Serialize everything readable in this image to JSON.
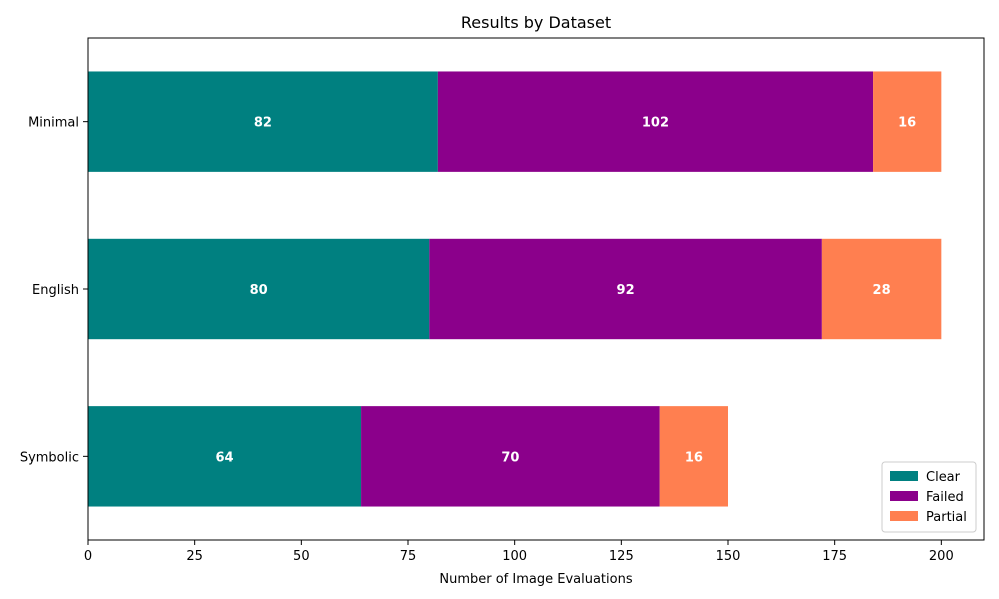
{
  "chart_data": {
    "type": "bar",
    "orientation": "horizontal",
    "stacked": true,
    "title": "Results by Dataset",
    "xlabel": "Number of Image Evaluations",
    "ylabel": "",
    "categories": [
      "Symbolic",
      "English",
      "Minimal"
    ],
    "series": [
      {
        "name": "Clear",
        "color": "#008080",
        "values": [
          64,
          80,
          82
        ]
      },
      {
        "name": "Failed",
        "color": "#8B008B",
        "values": [
          70,
          92,
          102
        ]
      },
      {
        "name": "Partial",
        "color": "#FF7F50",
        "values": [
          16,
          28,
          16
        ]
      }
    ],
    "xlim": [
      0,
      210
    ],
    "xticks": [
      0,
      25,
      50,
      75,
      100,
      125,
      150,
      175,
      200
    ],
    "grid": false,
    "legend_position": "lower-right",
    "data_labels": true
  }
}
